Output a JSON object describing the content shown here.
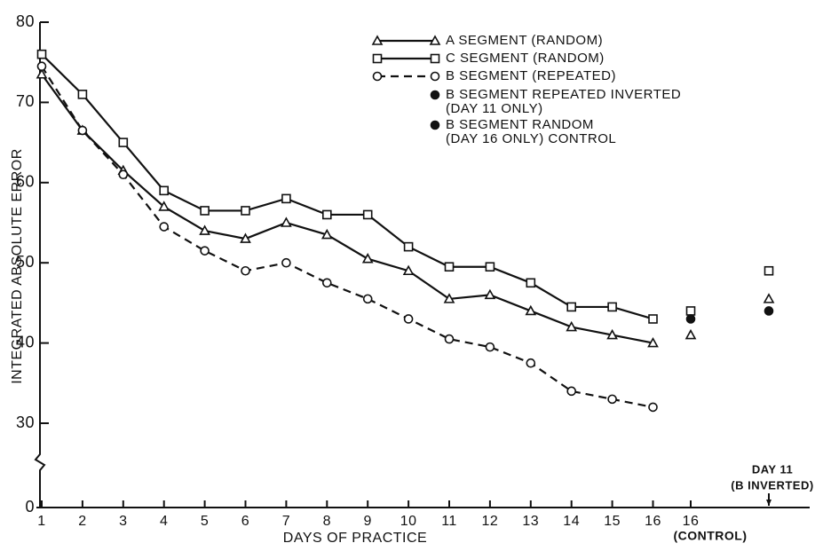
{
  "chart_data": {
    "type": "line",
    "x_label": "DAYS OF PRACTICE",
    "y_label": "INTEGRATED ABSOLUTE ERROR",
    "categories": [
      "1",
      "2",
      "3",
      "4",
      "5",
      "6",
      "7",
      "8",
      "9",
      "10",
      "11",
      "12",
      "13",
      "14",
      "15",
      "16"
    ],
    "extra_columns": [
      {
        "label": "16",
        "sublabel": "(CONTROL)"
      },
      {
        "annotation": [
          "DAY 11",
          "(B INVERTED)"
        ]
      }
    ],
    "ylim": [
      0,
      80
    ],
    "yticks": [
      0,
      30,
      40,
      50,
      60,
      70,
      80
    ],
    "axis_break": true,
    "legend": "top-right",
    "series": [
      {
        "name": "A SEGMENT (RANDOM)",
        "marker": "triangle",
        "dash": false,
        "color": "#111",
        "values": [
          73.5,
          66.5,
          61.5,
          57,
          54,
          53,
          55,
          53.5,
          50.5,
          49,
          45.5,
          46,
          44,
          42,
          41,
          40
        ],
        "extra_values": [
          41,
          45.5
        ]
      },
      {
        "name": "C SEGMENT (RANDOM)",
        "marker": "square",
        "dash": false,
        "color": "#111",
        "values": [
          76,
          71,
          65,
          59,
          56.5,
          56.5,
          58,
          56,
          56,
          52,
          49.5,
          49.5,
          47.5,
          44.5,
          44.5,
          43
        ],
        "extra_values": [
          44,
          49
        ]
      },
      {
        "name": "B SEGMENT (REPEATED)",
        "marker": "circle",
        "dash": true,
        "color": "#111",
        "values": [
          74.5,
          66.5,
          61,
          54.5,
          51.5,
          49,
          50,
          47.5,
          45.5,
          43,
          40.5,
          39.5,
          37.5,
          34,
          33,
          32
        ]
      },
      {
        "name": [
          "B SEGMENT REPEATED INVERTED",
          "(DAY 11 ONLY)"
        ],
        "marker": "dot",
        "color": "#111",
        "extra_values": [
          null,
          44
        ]
      },
      {
        "name": [
          "B SEGMENT RANDOM",
          "(DAY 16 ONLY) CONTROL"
        ],
        "marker": "dot",
        "color": "#111",
        "extra_values": [
          43,
          null
        ]
      }
    ]
  }
}
